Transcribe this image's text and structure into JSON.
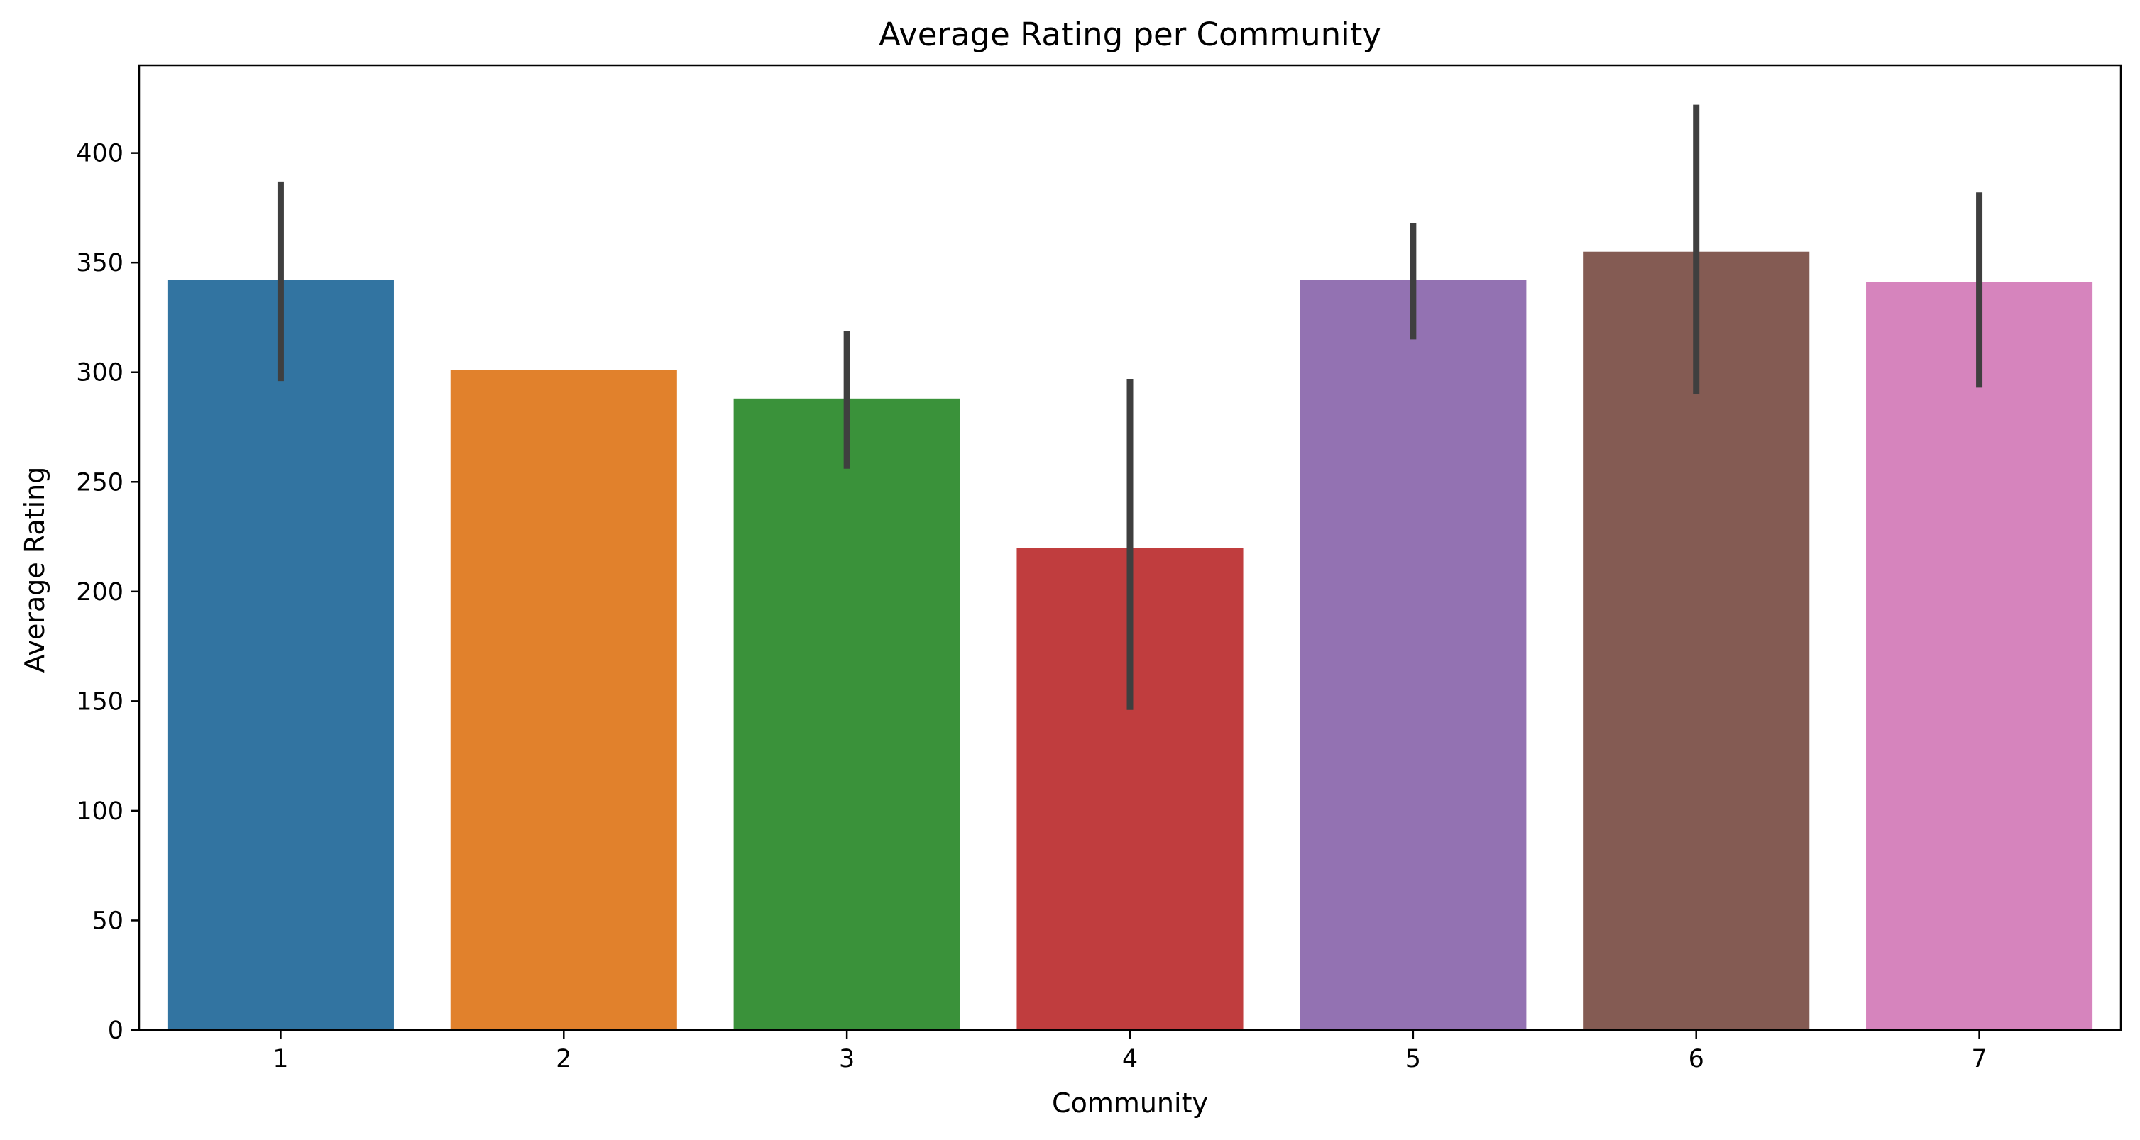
{
  "chart_data": {
    "type": "bar",
    "title": "Average Rating per Community",
    "xlabel": "Community",
    "ylabel": "Average Rating",
    "categories": [
      "1",
      "2",
      "3",
      "4",
      "5",
      "6",
      "7"
    ],
    "values": [
      342,
      301,
      288,
      220,
      342,
      355,
      341
    ],
    "error_low": [
      296,
      301,
      256,
      146,
      315,
      290,
      293
    ],
    "error_high": [
      387,
      301,
      319,
      297,
      368,
      422,
      382
    ],
    "colors": [
      "#3274a1",
      "#e1812c",
      "#3a923a",
      "#c03d3e",
      "#9372b2",
      "#845b53",
      "#d684bd"
    ],
    "error_color": "#3f3f3f",
    "ylim": [
      0,
      440
    ],
    "yticks": [
      0,
      50,
      100,
      150,
      200,
      250,
      300,
      350,
      400
    ],
    "ytick_labels": [
      "0",
      "50",
      "100",
      "150",
      "200",
      "250",
      "300",
      "350",
      "400"
    ],
    "grid": false,
    "legend": "none"
  }
}
